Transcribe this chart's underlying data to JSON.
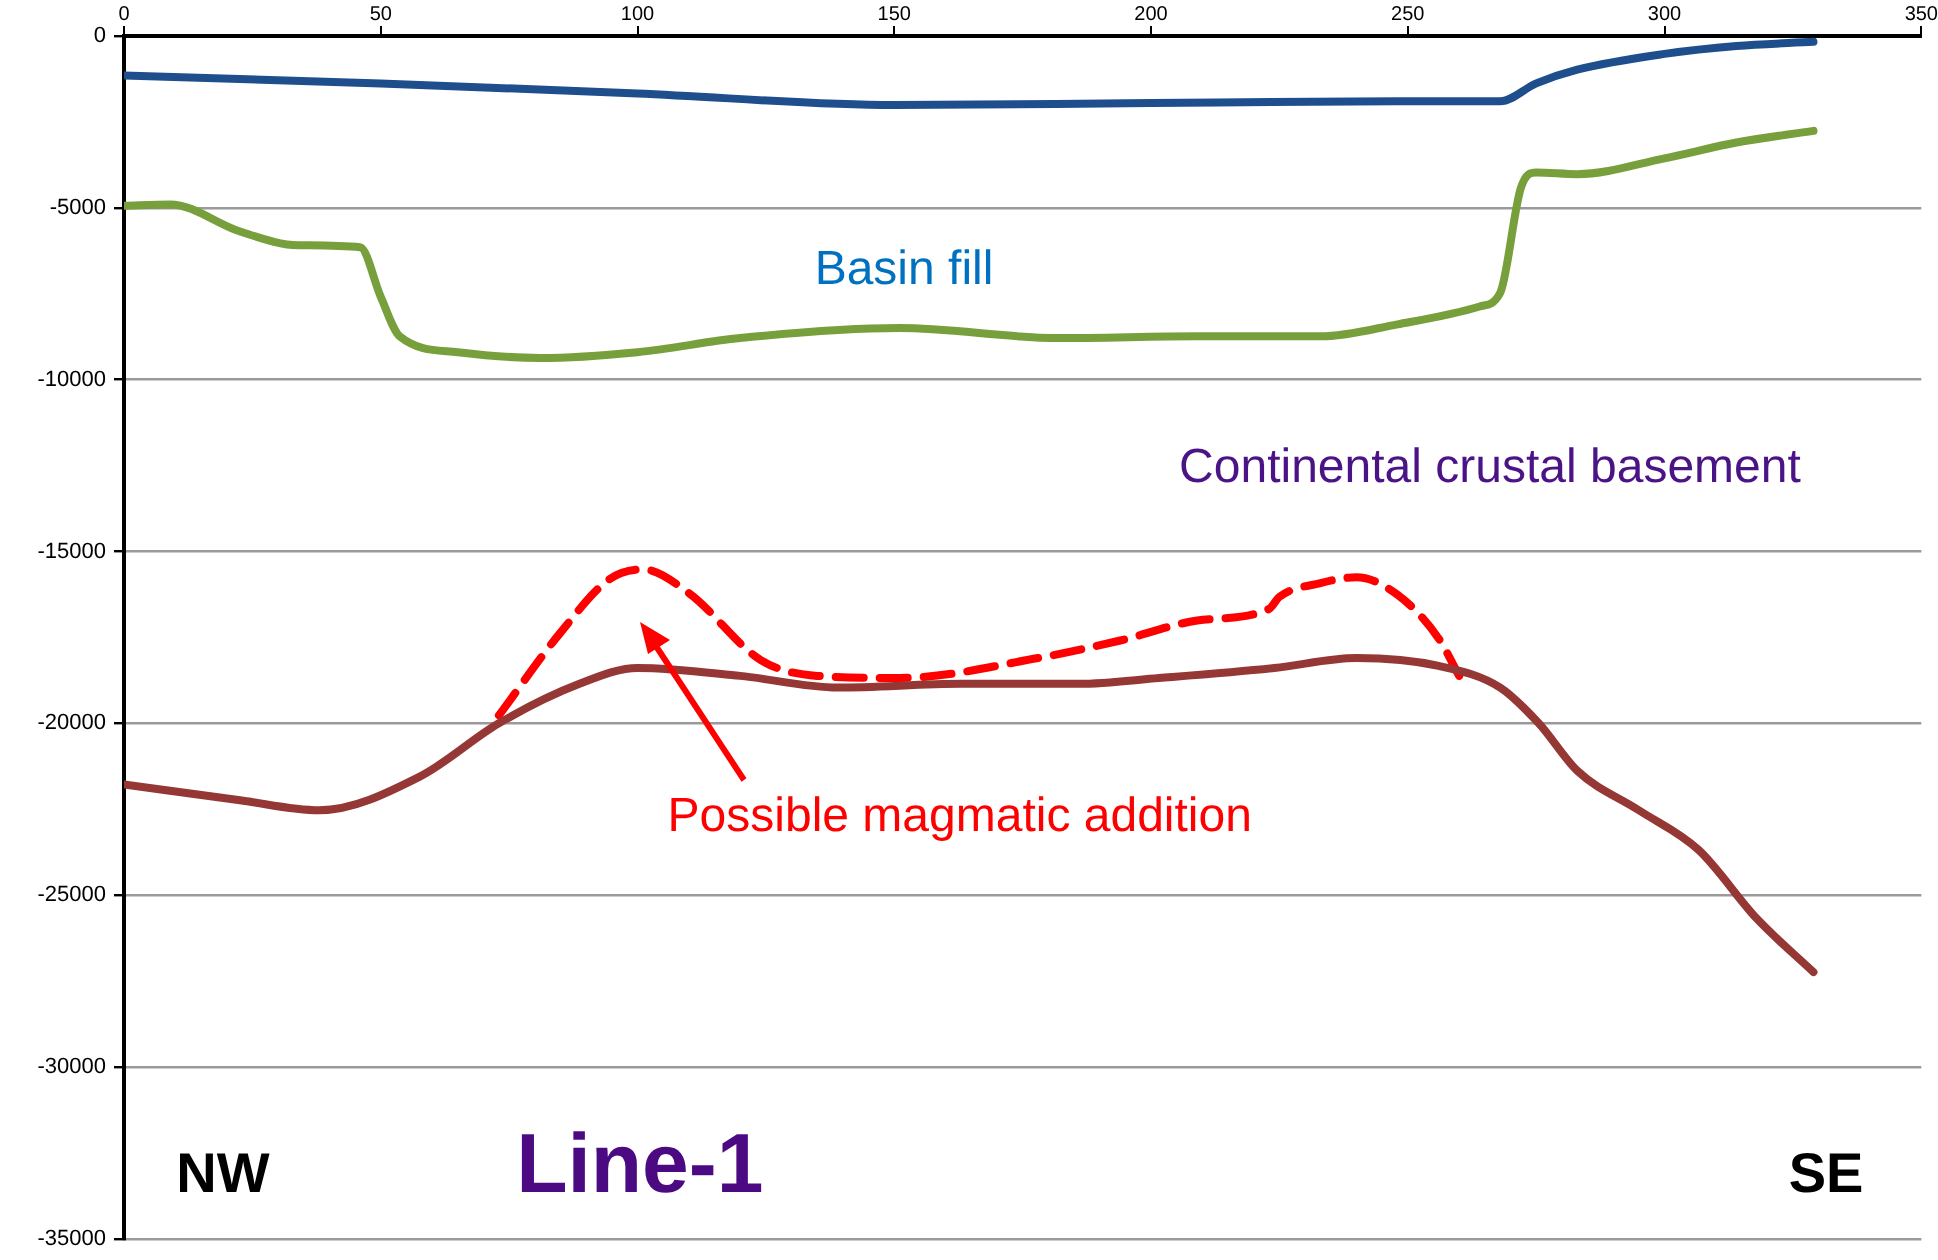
{
  "chart_data": {
    "type": "line",
    "xlim": [
      0,
      350
    ],
    "xticks": [
      0,
      50,
      100,
      150,
      200,
      250,
      300,
      350
    ],
    "ylim": [
      -35000,
      0
    ],
    "yticks": [
      -35000,
      -30000,
      -25000,
      -20000,
      -15000,
      -10000,
      -5000,
      0
    ],
    "grid": "y",
    "legend": false,
    "marker": "none",
    "annotations": [
      "Basin fill",
      "Continental crustal basement",
      "Possible magmatic addition",
      "NW",
      "Line-1",
      "SE"
    ],
    "series": [
      {
        "color": "#1f4e8c",
        "line_style": "solid",
        "x": [
          0,
          50,
          100,
          150,
          200,
          250,
          268,
          275,
          283,
          300,
          314,
          329
        ],
        "values": [
          -1150,
          -1380,
          -1670,
          -2010,
          -1950,
          -1900,
          -1900,
          -1380,
          -980,
          -520,
          -290,
          -170
        ]
      },
      {
        "color": "#77a03c",
        "line_style": "solid",
        "x": [
          0,
          9,
          22.6,
          34,
          46,
          50,
          53.7,
          65,
          81,
          100,
          120,
          151,
          182,
          209,
          233,
          248,
          264,
          268,
          272,
          275,
          283,
          300,
          314,
          329
        ],
        "values": [
          -4940,
          -4900,
          -5690,
          -6090,
          -6150,
          -7590,
          -8740,
          -9200,
          -9370,
          -9200,
          -8790,
          -8500,
          -8790,
          -8740,
          -8740,
          -8390,
          -7870,
          -7470,
          -4430,
          -3970,
          -4020,
          -3560,
          -3100,
          -2760
        ]
      },
      {
        "color": "#953735",
        "line_style": "solid",
        "x": [
          0,
          22.6,
          38,
          57.6,
          73,
          88.7,
          100,
          120,
          139,
          163,
          186,
          201.6,
          224,
          240,
          256,
          268,
          275.5,
          283,
          295,
          306.6,
          318,
          329
        ],
        "values": [
          -21780,
          -22240,
          -22530,
          -21550,
          -20000,
          -18850,
          -18390,
          -18620,
          -18960,
          -18850,
          -18850,
          -18680,
          -18390,
          -18100,
          -18330,
          -18960,
          -20000,
          -21380,
          -22530,
          -23680,
          -25690,
          -27240
        ]
      },
      {
        "color": "#ff0000",
        "line_style": "dashed",
        "x": [
          73,
          85,
          94.6,
          101,
          110,
          124,
          135,
          151,
          178,
          194,
          209,
          223,
          225,
          233,
          240,
          248,
          256,
          260
        ],
        "values": [
          -19770,
          -17360,
          -15800,
          -15520,
          -16210,
          -18160,
          -18620,
          -18680,
          -18100,
          -17590,
          -17010,
          -16670,
          -16320,
          -15920,
          -15750,
          -16260,
          -17530,
          -18620
        ]
      }
    ]
  }
}
